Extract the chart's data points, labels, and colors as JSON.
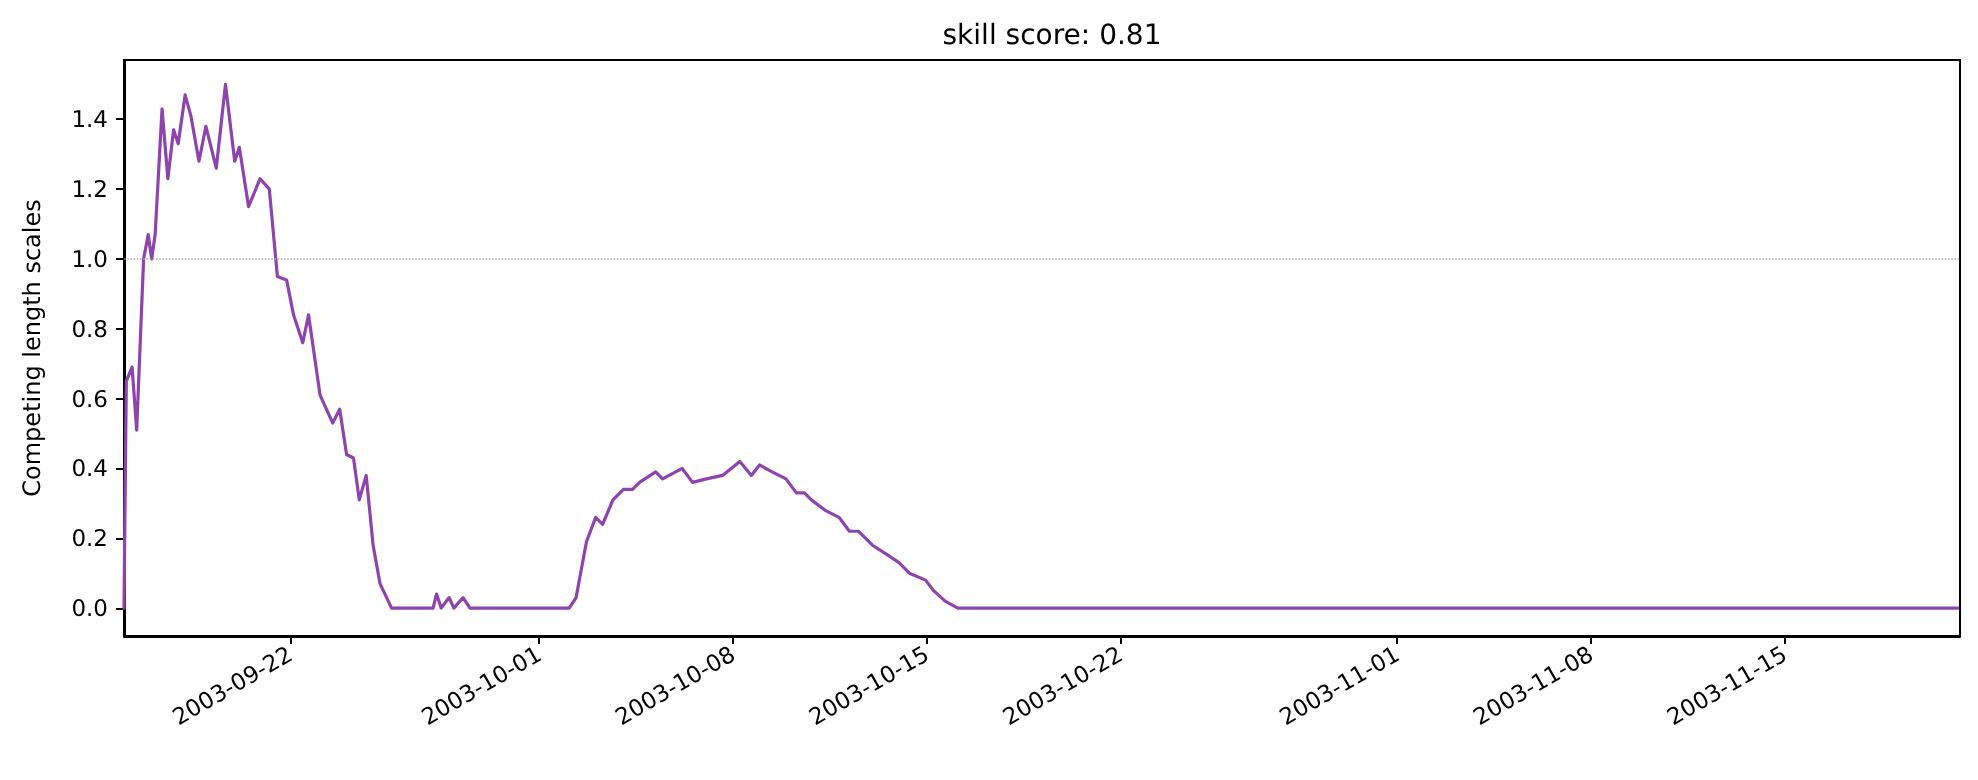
{
  "chart_data": {
    "type": "line",
    "title": "skill score: 0.81",
    "ylabel": "Competing length scales",
    "x": [
      "2003-09-16T00:00",
      "2003-09-16T02:00",
      "2003-09-16T07:00",
      "2003-09-16T11:00",
      "2003-09-16T17:00",
      "2003-09-16T21:00",
      "2003-09-17T00:00",
      "2003-09-17T03:00",
      "2003-09-17T09:00",
      "2003-09-17T14:00",
      "2003-09-17T19:00",
      "2003-09-17T23:00",
      "2003-09-18T05:00",
      "2003-09-18T10:00",
      "2003-09-18T17:00",
      "2003-09-18T23:00",
      "2003-09-19T08:00",
      "2003-09-19T16:00",
      "2003-09-20T00:00",
      "2003-09-20T04:00",
      "2003-09-20T12:00",
      "2003-09-20T22:00",
      "2003-09-21T06:00",
      "2003-09-21T13:00",
      "2003-09-21T21:00",
      "2003-09-22T03:00",
      "2003-09-22T11:00",
      "2003-09-22T16:00",
      "2003-09-23T02:00",
      "2003-09-23T13:00",
      "2003-09-23T19:00",
      "2003-09-24T01:00",
      "2003-09-24T07:00",
      "2003-09-24T12:00",
      "2003-09-24T18:00",
      "2003-09-25T00:00",
      "2003-09-25T06:00",
      "2003-09-25T16:00",
      "2003-09-27T04:00",
      "2003-09-27T07:00",
      "2003-09-27T11:00",
      "2003-09-27T18:00",
      "2003-09-27T22:00",
      "2003-09-28T06:00",
      "2003-09-28T12:00",
      "2003-10-02T02:00",
      "2003-10-02T08:00",
      "2003-10-02T17:00",
      "2003-10-03T01:00",
      "2003-10-03T07:00",
      "2003-10-03T16:00",
      "2003-10-04T01:00",
      "2003-10-04T09:00",
      "2003-10-04T15:00",
      "2003-10-05T05:00",
      "2003-10-05T11:00",
      "2003-10-06T04:00",
      "2003-10-06T13:00",
      "2003-10-07T01:00",
      "2003-10-07T15:00",
      "2003-10-08T06:00",
      "2003-10-08T16:00",
      "2003-10-08T23:00",
      "2003-10-09T10:00",
      "2003-10-09T22:00",
      "2003-10-10T07:00",
      "2003-10-10T14:00",
      "2003-10-10T20:00",
      "2003-10-11T08:00",
      "2003-10-11T20:00",
      "2003-10-12T05:00",
      "2003-10-12T13:00",
      "2003-10-13T01:00",
      "2003-10-13T15:00",
      "2003-10-14T00:00",
      "2003-10-14T09:00",
      "2003-10-14T23:00",
      "2003-10-15T06:00",
      "2003-10-15T16:00",
      "2003-10-16T03:00",
      "2003-11-21T06:00"
    ],
    "series": [
      {
        "color": "#8e44ad",
        "values": [
          0,
          0.65,
          0.69,
          0.51,
          1.0,
          1.07,
          1.0,
          1.07,
          1.43,
          1.23,
          1.37,
          1.33,
          1.47,
          1.41,
          1.28,
          1.38,
          1.26,
          1.5,
          1.28,
          1.32,
          1.15,
          1.23,
          1.2,
          0.95,
          0.94,
          0.84,
          0.76,
          0.84,
          0.61,
          0.53,
          0.57,
          0.44,
          0.43,
          0.31,
          0.38,
          0.18,
          0.07,
          0,
          0,
          0.04,
          0,
          0.03,
          0,
          0.03,
          0,
          0,
          0.03,
          0.19,
          0.26,
          0.24,
          0.31,
          0.34,
          0.34,
          0.36,
          0.39,
          0.37,
          0.4,
          0.36,
          0.37,
          0.38,
          0.42,
          0.38,
          0.41,
          0.39,
          0.37,
          0.33,
          0.33,
          0.31,
          0.28,
          0.26,
          0.22,
          0.22,
          0.18,
          0.15,
          0.13,
          0.1,
          0.08,
          0.05,
          0.02,
          0,
          0
        ]
      }
    ],
    "xlim": [
      "2003-09-16T00:00",
      "2003-11-21T08:00"
    ],
    "xticks": [
      "2003-09-22",
      "2003-10-01",
      "2003-10-08",
      "2003-10-15",
      "2003-10-22",
      "2003-11-01",
      "2003-11-08",
      "2003-11-15"
    ],
    "ylim": [
      -0.08,
      1.57
    ],
    "yticks": [
      {
        "value": 0,
        "label": "0.0"
      },
      {
        "value": 0.2,
        "label": "0.2"
      },
      {
        "value": 0.4,
        "label": "0.4"
      },
      {
        "value": 0.6,
        "label": "0.6"
      },
      {
        "value": 0.8,
        "label": "0.8"
      },
      {
        "value": 1,
        "label": "1.0"
      },
      {
        "value": 1.2,
        "label": "1.2"
      },
      {
        "value": 1.4,
        "label": "1.4"
      }
    ],
    "ref_lines": [
      {
        "axis": "y",
        "value": 1,
        "color": "#aaaaaa",
        "line_style": "dotted"
      }
    ],
    "grid": false,
    "marker": "none",
    "line_style": "solid"
  }
}
